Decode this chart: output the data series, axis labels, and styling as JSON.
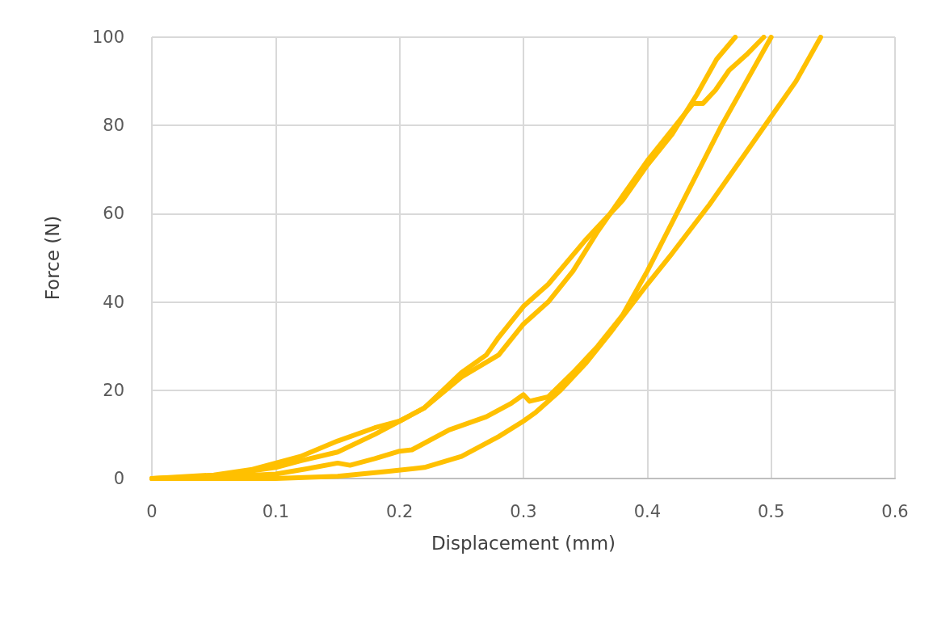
{
  "chart_data": {
    "type": "line",
    "xlabel": "Displacement (mm)",
    "ylabel": "Force (N)",
    "xlim": [
      0,
      0.6
    ],
    "xticks": [
      0,
      0.1,
      0.2,
      0.3,
      0.4,
      0.5,
      0.6
    ],
    "ylim": [
      0,
      100
    ],
    "yticks": [
      0,
      20,
      40,
      60,
      80,
      100
    ],
    "grid": true,
    "series": [
      {
        "color": "#ffc000",
        "x": [
          0,
          0.05,
          0.08,
          0.1,
          0.12,
          0.15,
          0.18,
          0.2,
          0.22,
          0.25,
          0.27,
          0.28,
          0.3,
          0.32,
          0.35,
          0.38,
          0.4,
          0.42,
          0.44,
          0.456,
          0.471
        ],
        "values": [
          0,
          0.8,
          2,
          3.5,
          5,
          8.5,
          11.5,
          13,
          16,
          24,
          28,
          32,
          39,
          44,
          54,
          63,
          71,
          78,
          87,
          95,
          100
        ]
      },
      {
        "color": "#ffc000",
        "x": [
          0,
          0.05,
          0.1,
          0.12,
          0.15,
          0.18,
          0.2,
          0.22,
          0.25,
          0.28,
          0.3,
          0.32,
          0.34,
          0.36,
          0.38,
          0.4,
          0.42,
          0.437,
          0.445,
          0.455,
          0.466,
          0.48,
          0.494
        ],
        "values": [
          0,
          0.5,
          2.5,
          4,
          6,
          10,
          13,
          16,
          23,
          28,
          35,
          40,
          47,
          56,
          64,
          72,
          79,
          85,
          85,
          88,
          92.5,
          96,
          100
        ]
      },
      {
        "color": "#ffc000",
        "x": [
          0,
          0.05,
          0.1,
          0.125,
          0.15,
          0.16,
          0.18,
          0.2,
          0.21,
          0.24,
          0.27,
          0.29,
          0.3,
          0.305,
          0.32,
          0.34,
          0.36,
          0.38,
          0.4,
          0.42,
          0.44,
          0.46,
          0.48,
          0.5
        ],
        "values": [
          0,
          0.3,
          1,
          2.2,
          3.5,
          3,
          4.5,
          6.2,
          6.5,
          11,
          14,
          17,
          19,
          17.5,
          18.5,
          24,
          30,
          37,
          47,
          58,
          69,
          80,
          90,
          100
        ]
      },
      {
        "color": "#ffc000",
        "x": [
          0,
          0.1,
          0.15,
          0.19,
          0.22,
          0.25,
          0.28,
          0.3,
          0.31,
          0.33,
          0.35,
          0.37,
          0.4,
          0.42,
          0.45,
          0.48,
          0.5,
          0.52,
          0.54
        ],
        "values": [
          0,
          0,
          0.5,
          1.6,
          2.5,
          5,
          9.5,
          13,
          15,
          20,
          26,
          33,
          44,
          51,
          62,
          74,
          82,
          90,
          100
        ]
      }
    ]
  }
}
